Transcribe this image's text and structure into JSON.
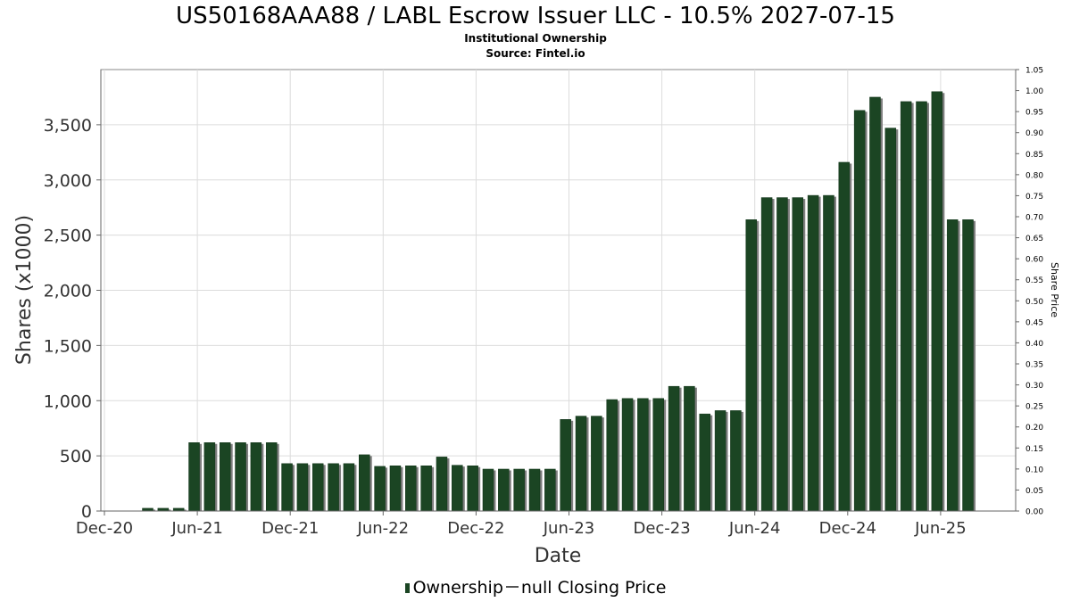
{
  "chart_data": {
    "type": "bar",
    "title": "US50168AAA88 / LABL Escrow Issuer LLC - 10.5% 2027-07-15",
    "subtitle": "Institutional Ownership",
    "source": "Source: Fintel.io",
    "xlabel": "Date",
    "ylabel": "Shares (x1000)",
    "y2label": "Share Price",
    "ylim": [
      0,
      4000
    ],
    "y2lim": [
      0,
      1.05
    ],
    "grid": true,
    "legend_position": "bottom-center",
    "x_ticks": [
      "Dec-20",
      "Jun-21",
      "Dec-21",
      "Jun-22",
      "Dec-22",
      "Jun-23",
      "Dec-23",
      "Jun-24",
      "Dec-24",
      "Jun-25"
    ],
    "y_ticks": [
      "0",
      "500",
      "1,000",
      "1,500",
      "2,000",
      "2,500",
      "3,000",
      "3,500"
    ],
    "y2_ticks": [
      "0.00",
      "0.05",
      "0.10",
      "0.15",
      "0.20",
      "0.25",
      "0.30",
      "0.35",
      "0.40",
      "0.45",
      "0.50",
      "0.55",
      "0.60",
      "0.65",
      "0.70",
      "0.75",
      "0.80",
      "0.85",
      "0.90",
      "0.95",
      "1.00",
      "1.05"
    ],
    "series": [
      {
        "name": "Ownership",
        "color": "#1b4523",
        "values": [
          25,
          25,
          25,
          620,
          620,
          620,
          620,
          620,
          620,
          430,
          430,
          430,
          430,
          430,
          510,
          405,
          410,
          410,
          410,
          490,
          415,
          410,
          380,
          380,
          380,
          380,
          380,
          830,
          860,
          860,
          1010,
          1020,
          1020,
          1020,
          1130,
          1130,
          880,
          910,
          910,
          2640,
          2840,
          2840,
          2840,
          2860,
          2860,
          3160,
          3630,
          3750,
          3470,
          3710,
          3710,
          3800,
          2640,
          2640
        ]
      },
      {
        "name": "null Closing Price",
        "color": "#555555",
        "values": []
      }
    ]
  },
  "legend": {
    "ownership_label": "Ownership",
    "price_label": "null Closing Price"
  }
}
